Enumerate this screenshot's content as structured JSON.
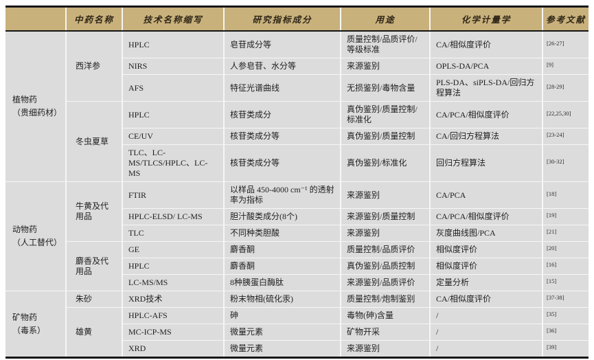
{
  "page": {
    "background": "#ffffff",
    "table_header_color": "#C9B17C",
    "table_body_color": "#dcdcdc",
    "rule_color": "#151515"
  },
  "table": {
    "headers": [
      "",
      "中药名称",
      "技术名称缩写",
      "研究指标成分",
      "用途",
      "化学计量学",
      "参考文献"
    ],
    "groups": [
      {
        "category": {
          "name": "植物药",
          "qualifier": "（贵细药材）"
        },
        "medicines": [
          {
            "name": "西洋参",
            "rows": [
              {
                "tech": "HPLC",
                "indicator": "皂苷成分等",
                "use": "质量控制/品质评价/等级标准",
                "chemometrics": "CA/相似度评价",
                "ref": "[26-27]"
              },
              {
                "tech": "NIRS",
                "indicator": "人参皂苷、水分等",
                "use": "来源鉴别",
                "chemometrics": "OPLS-DA/PCA",
                "ref": "[9]"
              },
              {
                "tech": "AFS",
                "indicator": "特征光谱曲线",
                "use": "无损鉴别/毒物含量",
                "chemometrics": "PLS-DA、siPLS-DA/回归方程算法",
                "ref": "[28-29]"
              }
            ]
          },
          {
            "name": "冬虫夏草",
            "rows": [
              {
                "tech": "HPLC",
                "indicator": "核苷类成分",
                "use": "真伪鉴别/质量控制/标准化",
                "chemometrics": "CA/PCA/相似度评价",
                "ref": "[22,25,30]"
              },
              {
                "tech": "CE/UV",
                "indicator": "核苷类成分等",
                "use": "真伪鉴别/质量控制",
                "chemometrics": "CA/回归方程算法",
                "ref": "[23-24]"
              },
              {
                "tech": "TLC、LC-MS/TLCS/HPLC、LC-MS",
                "indicator": "核苷类成分等",
                "use": "真伪鉴别/标准化",
                "chemometrics": "回归方程算法",
                "ref": "[30-32]"
              }
            ]
          }
        ]
      },
      {
        "category": {
          "name": "动物药",
          "qualifier": "（人工替代）"
        },
        "medicines": [
          {
            "name": "牛黄及代用品",
            "rows": [
              {
                "tech": "FTIR",
                "indicator": "以样品 450-4000 cm⁻¹ 的透射率为指标",
                "use": "来源鉴别",
                "chemometrics": "CA/PCA",
                "ref": "[18]"
              },
              {
                "tech": "HPLC-ELSD/ LC-MS",
                "indicator": "胆汁酸类成分(8个)",
                "use": "来源鉴别/质量控制",
                "chemometrics": "CA/PCA/相似度评价",
                "ref": "[19]"
              },
              {
                "tech": "TLC",
                "indicator": "不同种类胆酸",
                "use": "来源鉴别",
                "chemometrics": "灰度曲线图/PCA",
                "ref": "[21]"
              }
            ]
          },
          {
            "name": "麝香及代用品",
            "rows": [
              {
                "tech": "GE",
                "indicator": "麝香酮",
                "use": "质量控制/品质评价",
                "chemometrics": "相似度评价",
                "ref": "[20]"
              },
              {
                "tech": "HPLC",
                "indicator": "麝香酮",
                "use": "真伪鉴别/品质控制",
                "chemometrics": "相似度评价",
                "ref": "[16]"
              },
              {
                "tech": "LC-MS/MS",
                "indicator": "8种胰蛋白酶肽",
                "use": "来源鉴别/品质评价",
                "chemometrics": "定量分析",
                "ref": "[15]"
              }
            ]
          }
        ]
      },
      {
        "category": {
          "name": "矿物药",
          "qualifier": "（毒系）"
        },
        "medicines": [
          {
            "name": "朱砂",
            "rows": [
              {
                "tech": "XRD技术",
                "indicator": "粉末物相(硫化汞)",
                "use": "质量控制/炮制鉴别",
                "chemometrics": "CA/相似度评价",
                "ref": "[37-38]"
              }
            ]
          },
          {
            "name": "雄黄",
            "rows": [
              {
                "tech": "HPLC-AFS",
                "indicator": "砷",
                "use": "毒物(砷)含量",
                "chemometrics": "/",
                "ref": "[35]"
              },
              {
                "tech": "MC-ICP-MS",
                "indicator": "微量元素",
                "use": "矿物开采",
                "chemometrics": "/",
                "ref": "[36]"
              },
              {
                "tech": "XRD",
                "indicator": "微量元素",
                "use": "来源鉴别",
                "chemometrics": "/",
                "ref": "[39]"
              }
            ]
          }
        ]
      }
    ]
  }
}
